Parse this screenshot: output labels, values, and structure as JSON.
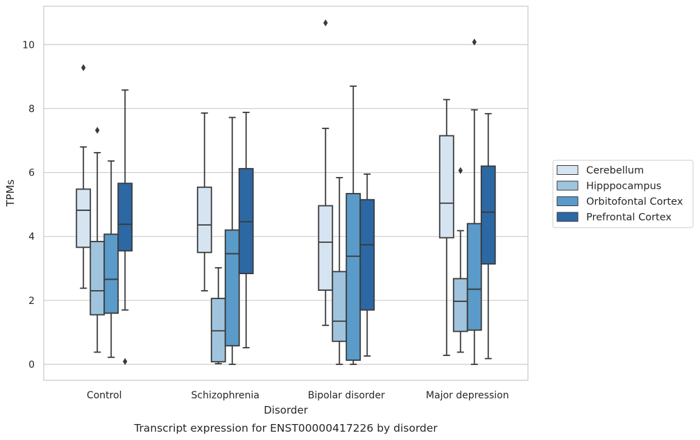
{
  "chart_data": {
    "type": "box",
    "title": "Transcript expression for ENST00000417226 by disorder",
    "xlabel": "Disorder",
    "ylabel": "TPMs",
    "ylim": [
      -0.5,
      11.2
    ],
    "yticks": [
      "0",
      "2",
      "4",
      "6",
      "8",
      "10"
    ],
    "grid": "horizontal",
    "legend_position": "right",
    "categories": [
      "Control",
      "Schizophrenia",
      "Bipolar disorder",
      "Major depression"
    ],
    "series": [
      {
        "name": "Cerebellum",
        "color": "#d6e4f2",
        "boxes": [
          {
            "whislo": 2.38,
            "q1": 3.66,
            "med": 4.82,
            "q3": 5.48,
            "whishi": 6.8,
            "fliers": [
              9.28
            ]
          },
          {
            "whislo": 2.3,
            "q1": 3.5,
            "med": 4.36,
            "q3": 5.54,
            "whishi": 7.86,
            "fliers": []
          },
          {
            "whislo": 1.22,
            "q1": 2.32,
            "med": 3.82,
            "q3": 4.96,
            "whishi": 7.38,
            "fliers": [
              10.68
            ]
          },
          {
            "whislo": 0.28,
            "q1": 3.96,
            "med": 5.04,
            "q3": 7.15,
            "whishi": 8.28,
            "fliers": []
          }
        ]
      },
      {
        "name": "Hipppocampus",
        "color": "#a0c4de",
        "boxes": [
          {
            "whislo": 0.38,
            "q1": 1.55,
            "med": 2.3,
            "q3": 3.84,
            "whishi": 6.62,
            "fliers": [
              7.32
            ]
          },
          {
            "whislo": 0.02,
            "q1": 0.08,
            "med": 1.05,
            "q3": 2.06,
            "whishi": 3.02,
            "fliers": []
          },
          {
            "whislo": 0.0,
            "q1": 0.72,
            "med": 1.35,
            "q3": 2.9,
            "whishi": 5.84,
            "fliers": []
          },
          {
            "whislo": 0.38,
            "q1": 1.03,
            "med": 1.97,
            "q3": 2.68,
            "whishi": 4.18,
            "fliers": [
              6.06
            ]
          }
        ]
      },
      {
        "name": "Orbitofontal Cortex",
        "color": "#5a9bc9",
        "boxes": [
          {
            "whislo": 0.22,
            "q1": 1.6,
            "med": 2.66,
            "q3": 4.07,
            "whishi": 6.36,
            "fliers": []
          },
          {
            "whislo": 0.0,
            "q1": 0.58,
            "med": 3.46,
            "q3": 4.2,
            "whishi": 7.72,
            "fliers": []
          },
          {
            "whislo": 0.0,
            "q1": 0.13,
            "med": 3.38,
            "q3": 5.34,
            "whishi": 8.7,
            "fliers": []
          },
          {
            "whislo": 0.0,
            "q1": 1.07,
            "med": 2.35,
            "q3": 4.4,
            "whishi": 7.96,
            "fliers": [
              10.08
            ]
          }
        ]
      },
      {
        "name": "Prefrontal Cortex",
        "color": "#2c68a4",
        "boxes": [
          {
            "whislo": 1.7,
            "q1": 3.55,
            "med": 4.38,
            "q3": 5.66,
            "whishi": 8.58,
            "fliers": [
              0.09
            ]
          },
          {
            "whislo": 0.52,
            "q1": 2.84,
            "med": 4.46,
            "q3": 6.12,
            "whishi": 7.88,
            "fliers": []
          },
          {
            "whislo": 0.26,
            "q1": 1.7,
            "med": 3.74,
            "q3": 5.15,
            "whishi": 5.95,
            "fliers": []
          },
          {
            "whislo": 0.18,
            "q1": 3.14,
            "med": 4.76,
            "q3": 6.2,
            "whishi": 7.84,
            "fliers": []
          }
        ]
      }
    ]
  }
}
